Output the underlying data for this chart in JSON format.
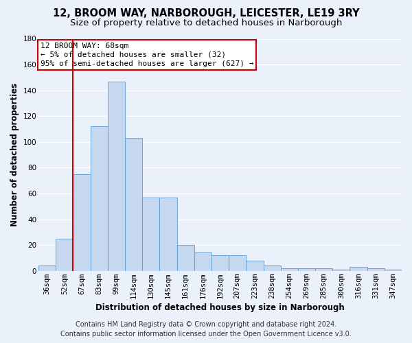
{
  "title_line1": "12, BROOM WAY, NARBOROUGH, LEICESTER, LE19 3RY",
  "title_line2": "Size of property relative to detached houses in Narborough",
  "xlabel": "Distribution of detached houses by size in Narborough",
  "ylabel": "Number of detached properties",
  "categories": [
    "36sqm",
    "52sqm",
    "67sqm",
    "83sqm",
    "99sqm",
    "114sqm",
    "130sqm",
    "145sqm",
    "161sqm",
    "176sqm",
    "192sqm",
    "207sqm",
    "223sqm",
    "238sqm",
    "254sqm",
    "269sqm",
    "285sqm",
    "300sqm",
    "316sqm",
    "331sqm",
    "347sqm"
  ],
  "values": [
    4,
    25,
    75,
    112,
    147,
    103,
    57,
    57,
    20,
    14,
    12,
    12,
    8,
    4,
    2,
    2,
    2,
    1,
    3,
    2,
    1
  ],
  "bar_color": "#c5d8f0",
  "bar_edge_color": "#5b9bd5",
  "annotation_text_line1": "12 BROOM WAY: 68sqm",
  "annotation_text_line2": "← 5% of detached houses are smaller (32)",
  "annotation_text_line3": "95% of semi-detached houses are larger (627) →",
  "annotation_box_edge_color": "#cc0000",
  "vline_color": "#cc0000",
  "vline_x": 1.5,
  "ylim": [
    0,
    180
  ],
  "yticks": [
    0,
    20,
    40,
    60,
    80,
    100,
    120,
    140,
    160,
    180
  ],
  "footnote1": "Contains HM Land Registry data © Crown copyright and database right 2024.",
  "footnote2": "Contains public sector information licensed under the Open Government Licence v3.0.",
  "bg_color": "#eaf1fb",
  "plot_bg_color": "#eaf1fb",
  "grid_color": "#ffffff",
  "title_fontsize": 10.5,
  "subtitle_fontsize": 9.5,
  "axis_label_fontsize": 8.5,
  "tick_fontsize": 7.5,
  "annotation_fontsize": 8,
  "footnote_fontsize": 7
}
